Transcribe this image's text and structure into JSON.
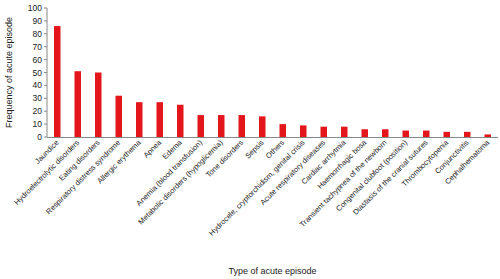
{
  "chart_data": {
    "type": "bar",
    "x_label": "Type of acute episode",
    "y_label": "Frequency of acute episode",
    "categories": [
      "Jaundice",
      "Hydroelectrolytic disorders",
      "Eating disorders",
      "Respiratory distress syndrome",
      "Allergic erythema",
      "Apnea",
      "Edema",
      "Anemia (blood transfusion)",
      "Metabolic disorders (hypoglicemia)",
      "Tone disorders",
      "Sepsis",
      "Others",
      "Hydrocele, cryptorchidism, genital crisis",
      "Acute respiratory diseases",
      "Cardiac arrhytmia",
      "Haemorrhagic bosa",
      "Transient tachypnea of the newborn",
      "Congenital clubfoot (position)",
      "Diastasis of the cranial sutures",
      "Thrombocytopenia",
      "Conjunctivitis",
      "Cephalhematoma"
    ],
    "values": [
      86,
      51,
      50,
      32,
      27,
      27,
      25,
      17,
      17,
      17,
      16,
      10,
      9,
      8,
      8,
      6,
      6,
      5,
      5,
      4,
      4,
      2
    ],
    "color": "#e3161b",
    "ylim": [
      0,
      100
    ],
    "yticks": [
      0,
      10,
      20,
      30,
      40,
      50,
      60,
      70,
      80,
      90,
      100
    ],
    "grid": false
  }
}
